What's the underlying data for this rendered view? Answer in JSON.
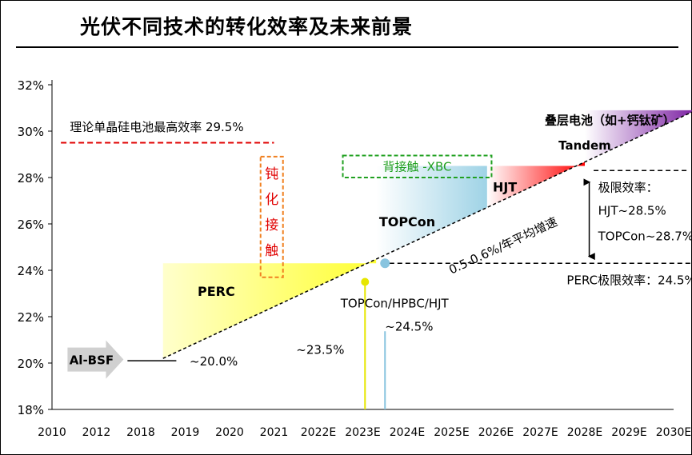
{
  "title": "光伏不同技术的转化效率及未来前景",
  "chart_data": {
    "type": "area",
    "categories": [
      "2010",
      "2012",
      "2018",
      "2019",
      "2020",
      "2021",
      "2022E",
      "2023E",
      "2024E",
      "2025E",
      "2026E",
      "2027E",
      "2028E",
      "2029E",
      "2030E"
    ],
    "y_tick_labels": [
      "18%",
      "20%",
      "22%",
      "24%",
      "26%",
      "28%",
      "30%",
      "32%"
    ],
    "ylim": [
      18,
      32
    ],
    "trend_line": {
      "label": "0.5-0.6%/年平均增速",
      "x": [
        2.5,
        14.5
      ],
      "y": [
        20.2,
        30.9
      ]
    },
    "regions": [
      {
        "name": "PERC",
        "color": "#ffff33",
        "x": [
          2.5,
          7.3
        ],
        "y_top": 24.3
      },
      {
        "name": "TOPCon",
        "color": "#9fd3e6",
        "x": [
          7.3,
          9.8
        ],
        "y_top": 28.5
      },
      {
        "name": "HJT",
        "color": "#ff0000",
        "x": [
          9.8,
          12.0
        ],
        "y_top": 28.5
      },
      {
        "name": "叠层电池（如+钙钛矿）",
        "color": "#7b1fa2",
        "x": [
          12.0,
          14.5
        ],
        "y_top": 30.9
      },
      {
        "name": "Tandem",
        "color": "#7b1fa2",
        "x": [
          12.0,
          14.5
        ],
        "y_top": 30.9
      }
    ],
    "annotations": [
      {
        "text": "理论单晶硅电池最高效率 29.5%",
        "value": 29.5,
        "color": "#e00000"
      },
      {
        "text": "钝",
        "color": "#e00000"
      },
      {
        "text": "化",
        "color": "#e00000"
      },
      {
        "text": "接",
        "color": "#e00000"
      },
      {
        "text": "触",
        "color": "#e00000"
      },
      {
        "text": "背接触 -XBC",
        "color": "#20a020"
      },
      {
        "text": "Al-BSF"
      },
      {
        "text": "~20.0%"
      },
      {
        "text": "~23.5%"
      },
      {
        "text": "TOPCon/HPBC/HJT"
      },
      {
        "text": "~24.5%"
      },
      {
        "text": "极限效率："
      },
      {
        "text": "HJT~28.5%"
      },
      {
        "text": "TOPCon~28.7%"
      },
      {
        "text": "PERC极限效率：24.5%"
      }
    ],
    "markers": [
      {
        "name": "PERC",
        "x": 7.05,
        "y": 23.5,
        "color": "#ffff00"
      },
      {
        "name": "TOPCon/HPBC/HJT",
        "x": 7.5,
        "y": 24.3,
        "color": "#9fd3e6"
      }
    ],
    "grid": false,
    "xlabel": "",
    "ylabel": ""
  }
}
